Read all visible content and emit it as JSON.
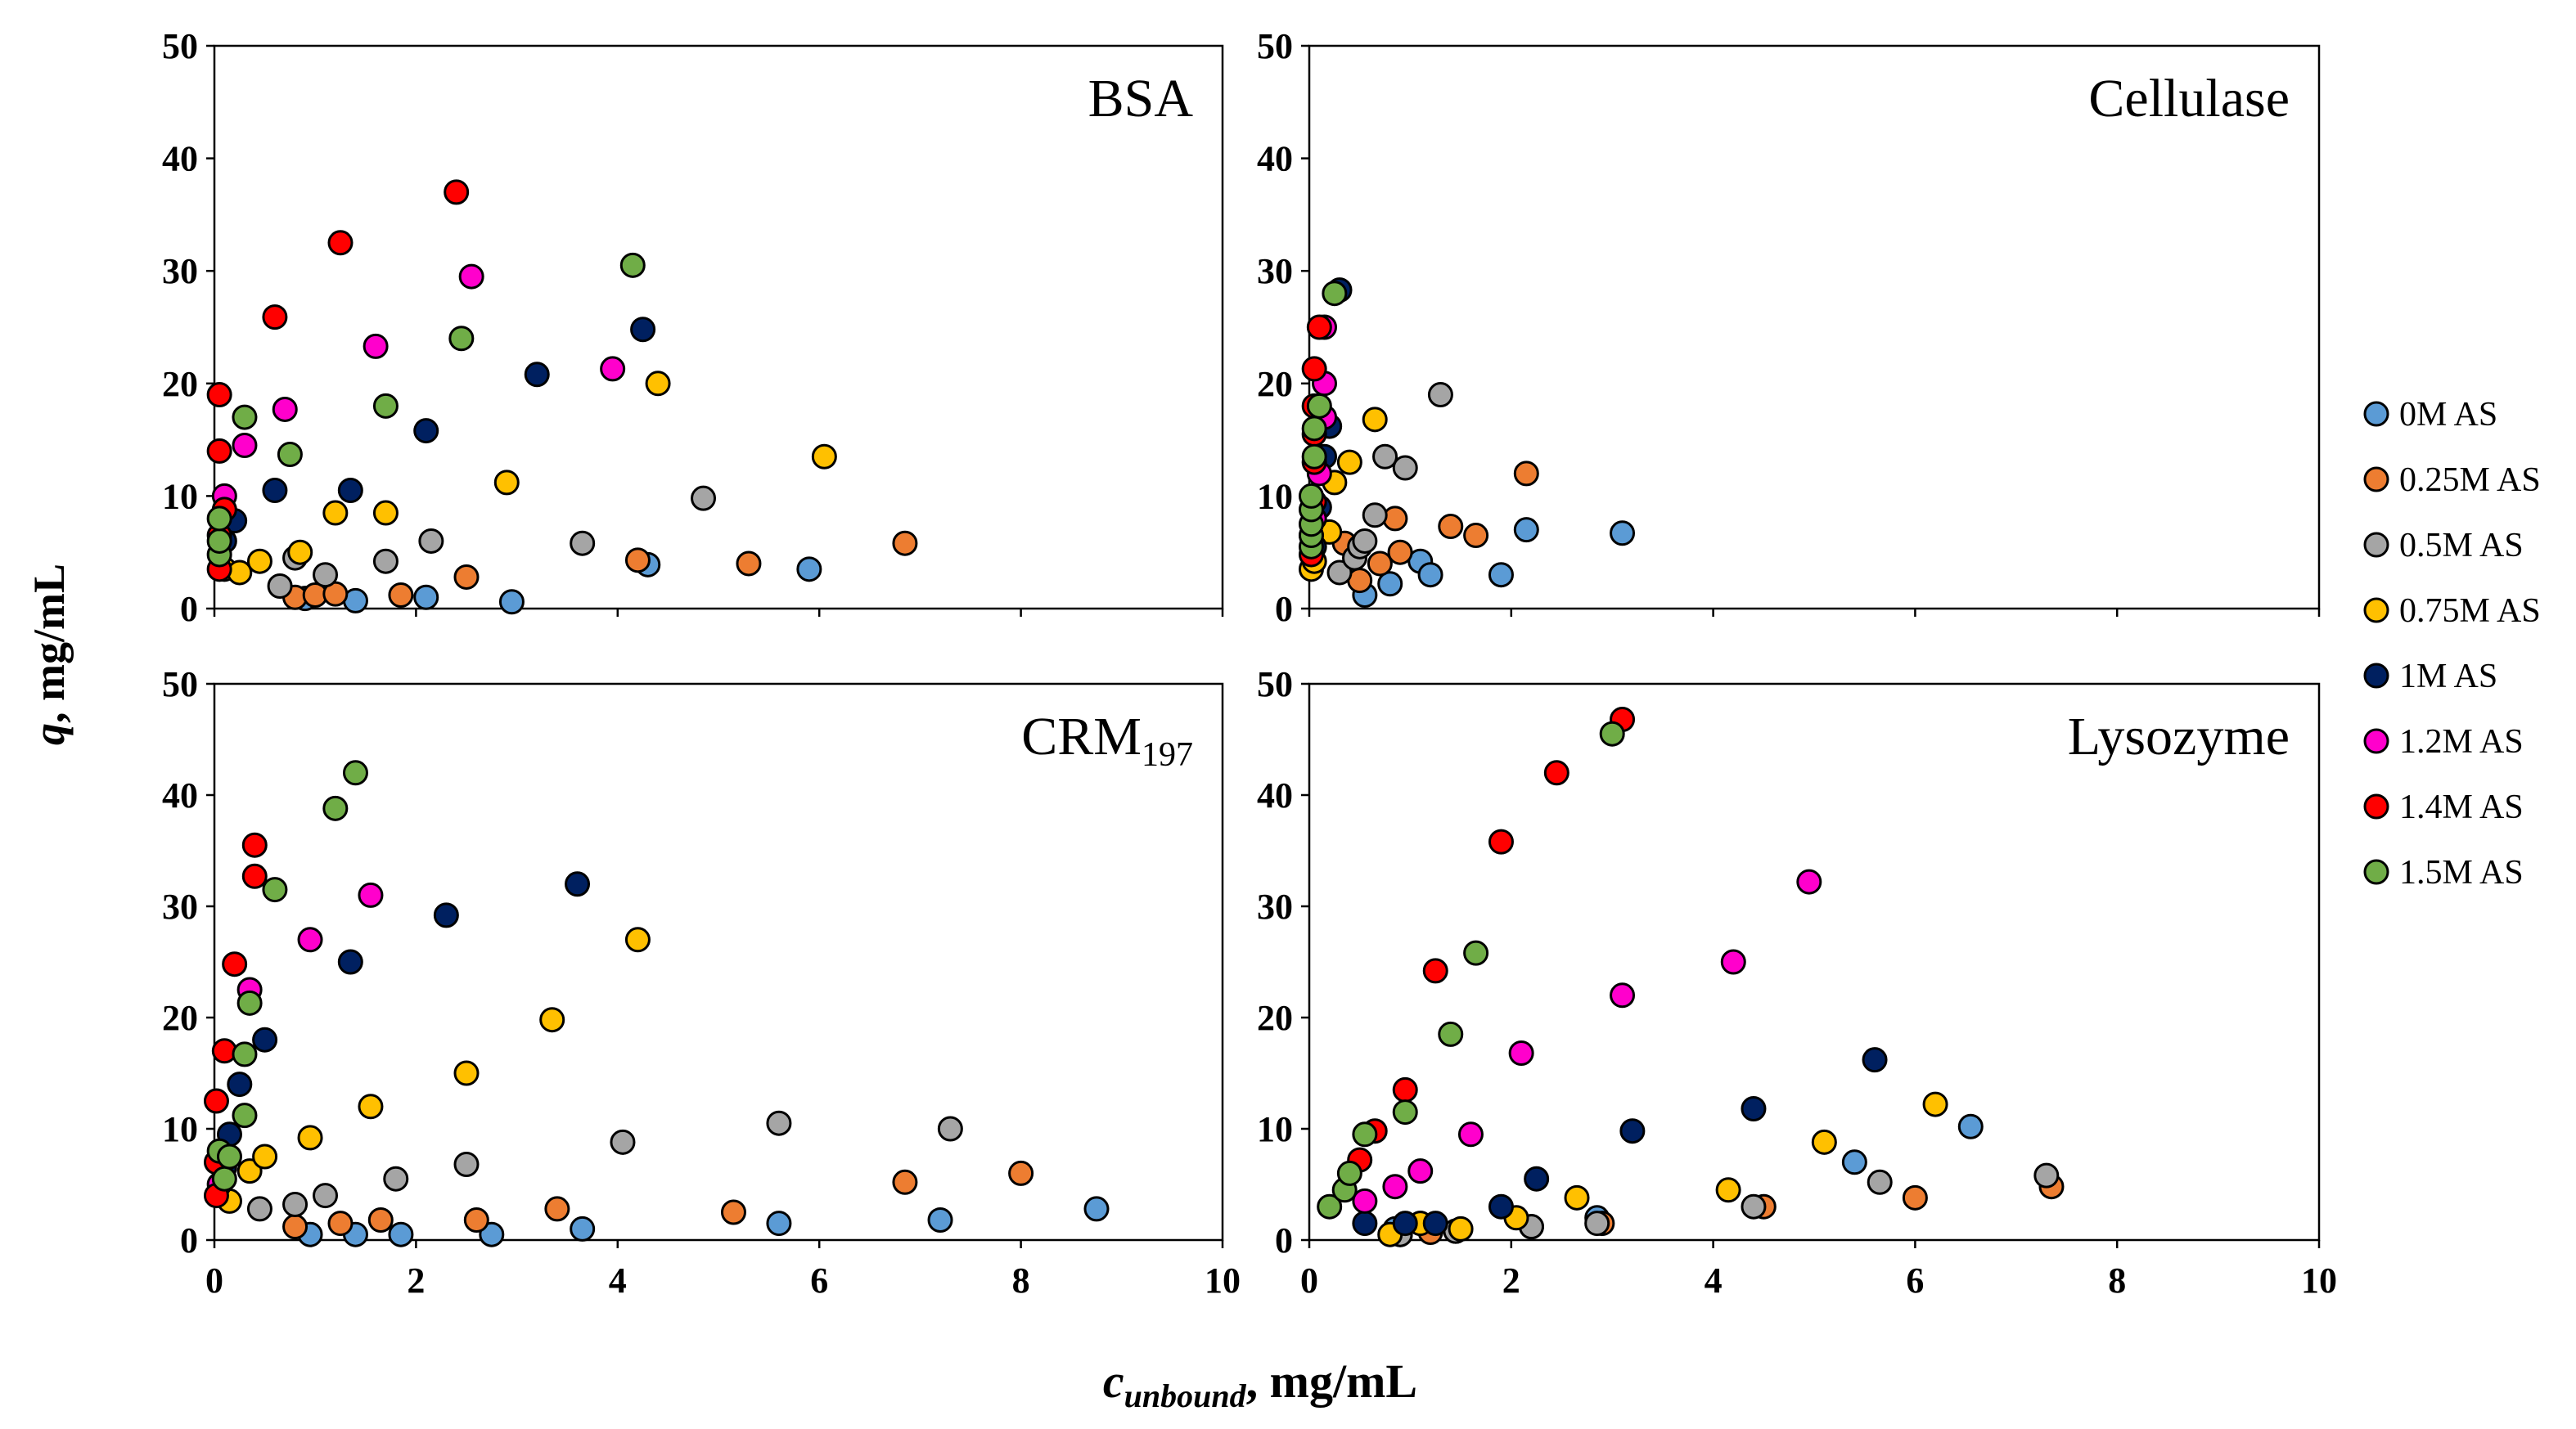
{
  "chart_data": {
    "type": "scatter",
    "ylabel_italic": "q",
    "ylabel_rest": ", mg/mL",
    "xlabel_main": "c",
    "xlabel_sub": "unbound",
    "xlabel_rest": ", mg/mL",
    "xlim": [
      0,
      10
    ],
    "ylim": [
      0,
      50
    ],
    "xticks": [
      0,
      2,
      4,
      6,
      8,
      10
    ],
    "yticks": [
      0,
      10,
      20,
      30,
      40,
      50
    ],
    "legend": [
      {
        "key": "0M",
        "label": "0M AS",
        "color": "#5b9bd5"
      },
      {
        "key": "0.25M",
        "label": "0.25M AS",
        "color": "#ed7d31"
      },
      {
        "key": "0.5M",
        "label": "0.5M AS",
        "color": "#a5a5a5"
      },
      {
        "key": "0.75M",
        "label": "0.75M AS",
        "color": "#ffc000"
      },
      {
        "key": "1M",
        "label": "1M AS",
        "color": "#002060"
      },
      {
        "key": "1.2M",
        "label": "1.2M AS",
        "color": "#ff00cc"
      },
      {
        "key": "1.4M",
        "label": "1.4M AS",
        "color": "#ff0000"
      },
      {
        "key": "1.5M",
        "label": "1.5M AS",
        "color": "#70ad47"
      }
    ],
    "panels": [
      {
        "title": "BSA",
        "title_sub": "",
        "series": {
          "0M": [
            [
              0.9,
              0.9
            ],
            [
              1.4,
              0.7
            ],
            [
              2.1,
              1.0
            ],
            [
              2.95,
              0.6
            ],
            [
              4.3,
              3.9
            ],
            [
              5.9,
              3.5
            ]
          ],
          "0.25M": [
            [
              0.8,
              1.0
            ],
            [
              1.0,
              1.2
            ],
            [
              1.2,
              1.3
            ],
            [
              1.85,
              1.2
            ],
            [
              2.5,
              2.8
            ],
            [
              4.2,
              4.3
            ],
            [
              5.3,
              4.0
            ],
            [
              6.85,
              5.8
            ]
          ],
          "0.5M": [
            [
              0.65,
              2.0
            ],
            [
              0.8,
              4.5
            ],
            [
              1.1,
              3.0
            ],
            [
              1.7,
              4.2
            ],
            [
              2.15,
              6.0
            ],
            [
              3.65,
              5.8
            ],
            [
              4.85,
              9.8
            ]
          ],
          "0.75M": [
            [
              0.1,
              3.5
            ],
            [
              0.25,
              3.2
            ],
            [
              0.45,
              4.2
            ],
            [
              0.85,
              5.0
            ],
            [
              1.2,
              8.5
            ],
            [
              1.7,
              8.5
            ],
            [
              2.9,
              11.2
            ],
            [
              4.4,
              20.0
            ],
            [
              6.05,
              13.5
            ]
          ],
          "1M": [
            [
              0.1,
              6.0
            ],
            [
              0.2,
              7.8
            ],
            [
              0.6,
              10.5
            ],
            [
              1.35,
              10.5
            ],
            [
              2.1,
              15.8
            ],
            [
              3.2,
              20.8
            ],
            [
              4.25,
              24.8
            ]
          ],
          "1.2M": [
            [
              0.1,
              10.0
            ],
            [
              0.3,
              14.5
            ],
            [
              0.7,
              17.7
            ],
            [
              1.6,
              23.3
            ],
            [
              2.55,
              29.5
            ],
            [
              3.95,
              21.3
            ]
          ],
          "1.4M": [
            [
              0.05,
              3.5
            ],
            [
              0.05,
              6.5
            ],
            [
              0.1,
              8.8
            ],
            [
              0.05,
              14.0
            ],
            [
              0.05,
              19.0
            ],
            [
              0.6,
              25.9
            ],
            [
              1.25,
              32.5
            ],
            [
              2.4,
              37.0
            ]
          ],
          "1.5M": [
            [
              0.05,
              4.8
            ],
            [
              0.05,
              6.0
            ],
            [
              0.05,
              8.0
            ],
            [
              0.3,
              17.0
            ],
            [
              0.75,
              13.7
            ],
            [
              1.7,
              18.0
            ],
            [
              2.45,
              24.0
            ],
            [
              4.15,
              30.5
            ]
          ]
        }
      },
      {
        "title": "Cellulase",
        "title_sub": "",
        "series": {
          "0M": [
            [
              0.55,
              1.2
            ],
            [
              0.8,
              2.2
            ],
            [
              1.1,
              4.2
            ],
            [
              1.2,
              3.0
            ],
            [
              1.9,
              3.0
            ],
            [
              2.15,
              7.0
            ],
            [
              3.1,
              6.7
            ]
          ],
          "0.25M": [
            [
              0.5,
              2.5
            ],
            [
              0.7,
              4.0
            ],
            [
              0.85,
              8.0
            ],
            [
              0.9,
              5.0
            ],
            [
              1.4,
              7.3
            ],
            [
              1.65,
              6.5
            ],
            [
              2.15,
              12.0
            ],
            [
              0.35,
              5.8
            ]
          ],
          "0.5M": [
            [
              0.3,
              3.2
            ],
            [
              0.45,
              4.5
            ],
            [
              0.5,
              5.5
            ],
            [
              0.55,
              6.0
            ],
            [
              0.65,
              8.3
            ],
            [
              0.75,
              13.5
            ],
            [
              0.95,
              12.5
            ],
            [
              1.3,
              19.0
            ]
          ],
          "0.75M": [
            [
              0.02,
              3.5
            ],
            [
              0.05,
              4.2
            ],
            [
              0.2,
              6.8
            ],
            [
              0.25,
              11.2
            ],
            [
              0.4,
              13.0
            ],
            [
              0.65,
              16.8
            ]
          ],
          "1M": [
            [
              0.05,
              5.5
            ],
            [
              0.1,
              9.0
            ],
            [
              0.15,
              13.5
            ],
            [
              0.2,
              16.2
            ],
            [
              0.3,
              28.3
            ]
          ],
          "1.2M": [
            [
              0.05,
              8.0
            ],
            [
              0.1,
              12.0
            ],
            [
              0.15,
              17.0
            ],
            [
              0.15,
              20.0
            ],
            [
              0.15,
              25.0
            ]
          ],
          "1.4M": [
            [
              0.02,
              4.8
            ],
            [
              0.02,
              6.5
            ],
            [
              0.05,
              9.5
            ],
            [
              0.05,
              13.0
            ],
            [
              0.05,
              15.5
            ],
            [
              0.05,
              18.0
            ],
            [
              0.05,
              21.3
            ],
            [
              0.1,
              25.0
            ]
          ],
          "1.5M": [
            [
              0.02,
              5.5
            ],
            [
              0.02,
              6.5
            ],
            [
              0.02,
              7.5
            ],
            [
              0.02,
              8.8
            ],
            [
              0.02,
              10.0
            ],
            [
              0.05,
              13.5
            ],
            [
              0.05,
              16.0
            ],
            [
              0.1,
              18.0
            ],
            [
              0.25,
              28.0
            ]
          ]
        }
      },
      {
        "title": "CRM",
        "title_sub": "197",
        "series": {
          "0M": [
            [
              0.95,
              0.5
            ],
            [
              1.4,
              0.5
            ],
            [
              1.85,
              0.5
            ],
            [
              2.75,
              0.5
            ],
            [
              3.65,
              1.0
            ],
            [
              5.6,
              1.5
            ],
            [
              7.2,
              1.8
            ],
            [
              8.75,
              2.8
            ]
          ],
          "0.25M": [
            [
              0.8,
              1.2
            ],
            [
              1.25,
              1.5
            ],
            [
              1.65,
              1.8
            ],
            [
              2.6,
              1.8
            ],
            [
              3.4,
              2.8
            ],
            [
              5.15,
              2.5
            ],
            [
              6.85,
              5.2
            ],
            [
              8.0,
              6.0
            ]
          ],
          "0.5M": [
            [
              0.45,
              2.8
            ],
            [
              0.8,
              3.2
            ],
            [
              1.1,
              4.0
            ],
            [
              1.8,
              5.5
            ],
            [
              2.5,
              6.8
            ],
            [
              4.05,
              8.8
            ],
            [
              5.6,
              10.5
            ],
            [
              7.3,
              10.0
            ]
          ],
          "0.75M": [
            [
              0.15,
              3.5
            ],
            [
              0.35,
              6.2
            ],
            [
              0.5,
              7.5
            ],
            [
              0.95,
              9.2
            ],
            [
              1.55,
              12.0
            ],
            [
              2.5,
              15.0
            ],
            [
              3.35,
              19.8
            ],
            [
              4.2,
              27.0
            ]
          ],
          "1M": [
            [
              0.1,
              6.5
            ],
            [
              0.15,
              9.5
            ],
            [
              0.25,
              14.0
            ],
            [
              0.5,
              18.0
            ],
            [
              1.35,
              25.0
            ],
            [
              2.3,
              29.2
            ],
            [
              3.6,
              32.0
            ]
          ],
          "1.2M": [
            [
              0.05,
              5.0
            ],
            [
              0.35,
              22.5
            ],
            [
              0.95,
              27.0
            ],
            [
              1.55,
              31.0
            ]
          ],
          "1.4M": [
            [
              0.02,
              4.0
            ],
            [
              0.02,
              7.0
            ],
            [
              0.02,
              12.5
            ],
            [
              0.1,
              17.0
            ],
            [
              0.2,
              24.8
            ],
            [
              0.4,
              32.7
            ],
            [
              0.4,
              35.5
            ]
          ],
          "1.5M": [
            [
              0.05,
              8.0
            ],
            [
              0.1,
              5.5
            ],
            [
              0.15,
              7.5
            ],
            [
              0.3,
              11.2
            ],
            [
              0.3,
              16.7
            ],
            [
              0.35,
              21.3
            ],
            [
              0.6,
              31.5
            ],
            [
              1.2,
              38.8
            ],
            [
              1.4,
              42.0
            ]
          ]
        }
      },
      {
        "title": "Lysozyme",
        "title_sub": "",
        "series": {
          "0M": [
            [
              0.85,
              1.0
            ],
            [
              1.1,
              1.5
            ],
            [
              1.45,
              0.8
            ],
            [
              2.85,
              2.0
            ],
            [
              5.4,
              7.0
            ],
            [
              6.55,
              10.2
            ]
          ],
          "0.25M": [
            [
              0.9,
              0.5
            ],
            [
              1.2,
              0.7
            ],
            [
              2.2,
              1.2
            ],
            [
              2.9,
              1.5
            ],
            [
              4.5,
              3.0
            ],
            [
              6.0,
              3.8
            ],
            [
              7.35,
              4.8
            ]
          ],
          "0.5M": [
            [
              0.9,
              0.5
            ],
            [
              1.45,
              0.8
            ],
            [
              2.2,
              1.2
            ],
            [
              2.85,
              1.5
            ],
            [
              4.4,
              3.0
            ],
            [
              5.65,
              5.2
            ],
            [
              7.3,
              5.8
            ]
          ],
          "0.75M": [
            [
              0.8,
              0.5
            ],
            [
              1.1,
              1.5
            ],
            [
              1.5,
              1.0
            ],
            [
              2.05,
              2.0
            ],
            [
              2.65,
              3.8
            ],
            [
              4.15,
              4.5
            ],
            [
              5.1,
              8.8
            ],
            [
              6.2,
              12.2
            ]
          ],
          "1M": [
            [
              0.55,
              1.5
            ],
            [
              0.95,
              1.5
            ],
            [
              1.25,
              1.5
            ],
            [
              1.9,
              3.0
            ],
            [
              2.25,
              5.5
            ],
            [
              3.2,
              9.8
            ],
            [
              4.4,
              11.8
            ],
            [
              5.6,
              16.2
            ]
          ],
          "1.2M": [
            [
              0.55,
              3.5
            ],
            [
              0.85,
              4.8
            ],
            [
              1.1,
              6.2
            ],
            [
              1.6,
              9.5
            ],
            [
              2.1,
              16.8
            ],
            [
              3.1,
              22.0
            ],
            [
              4.2,
              25.0
            ],
            [
              4.95,
              32.2
            ]
          ],
          "1.4M": [
            [
              0.5,
              7.2
            ],
            [
              0.65,
              9.8
            ],
            [
              0.95,
              13.5
            ],
            [
              1.25,
              24.2
            ],
            [
              1.9,
              35.8
            ],
            [
              2.45,
              42.0
            ],
            [
              3.1,
              46.8
            ]
          ],
          "1.5M": [
            [
              0.2,
              3.0
            ],
            [
              0.35,
              4.5
            ],
            [
              0.4,
              6.0
            ],
            [
              0.55,
              9.5
            ],
            [
              0.95,
              11.5
            ],
            [
              1.4,
              18.5
            ],
            [
              1.65,
              25.8
            ],
            [
              3.0,
              45.5
            ]
          ]
        }
      }
    ]
  }
}
